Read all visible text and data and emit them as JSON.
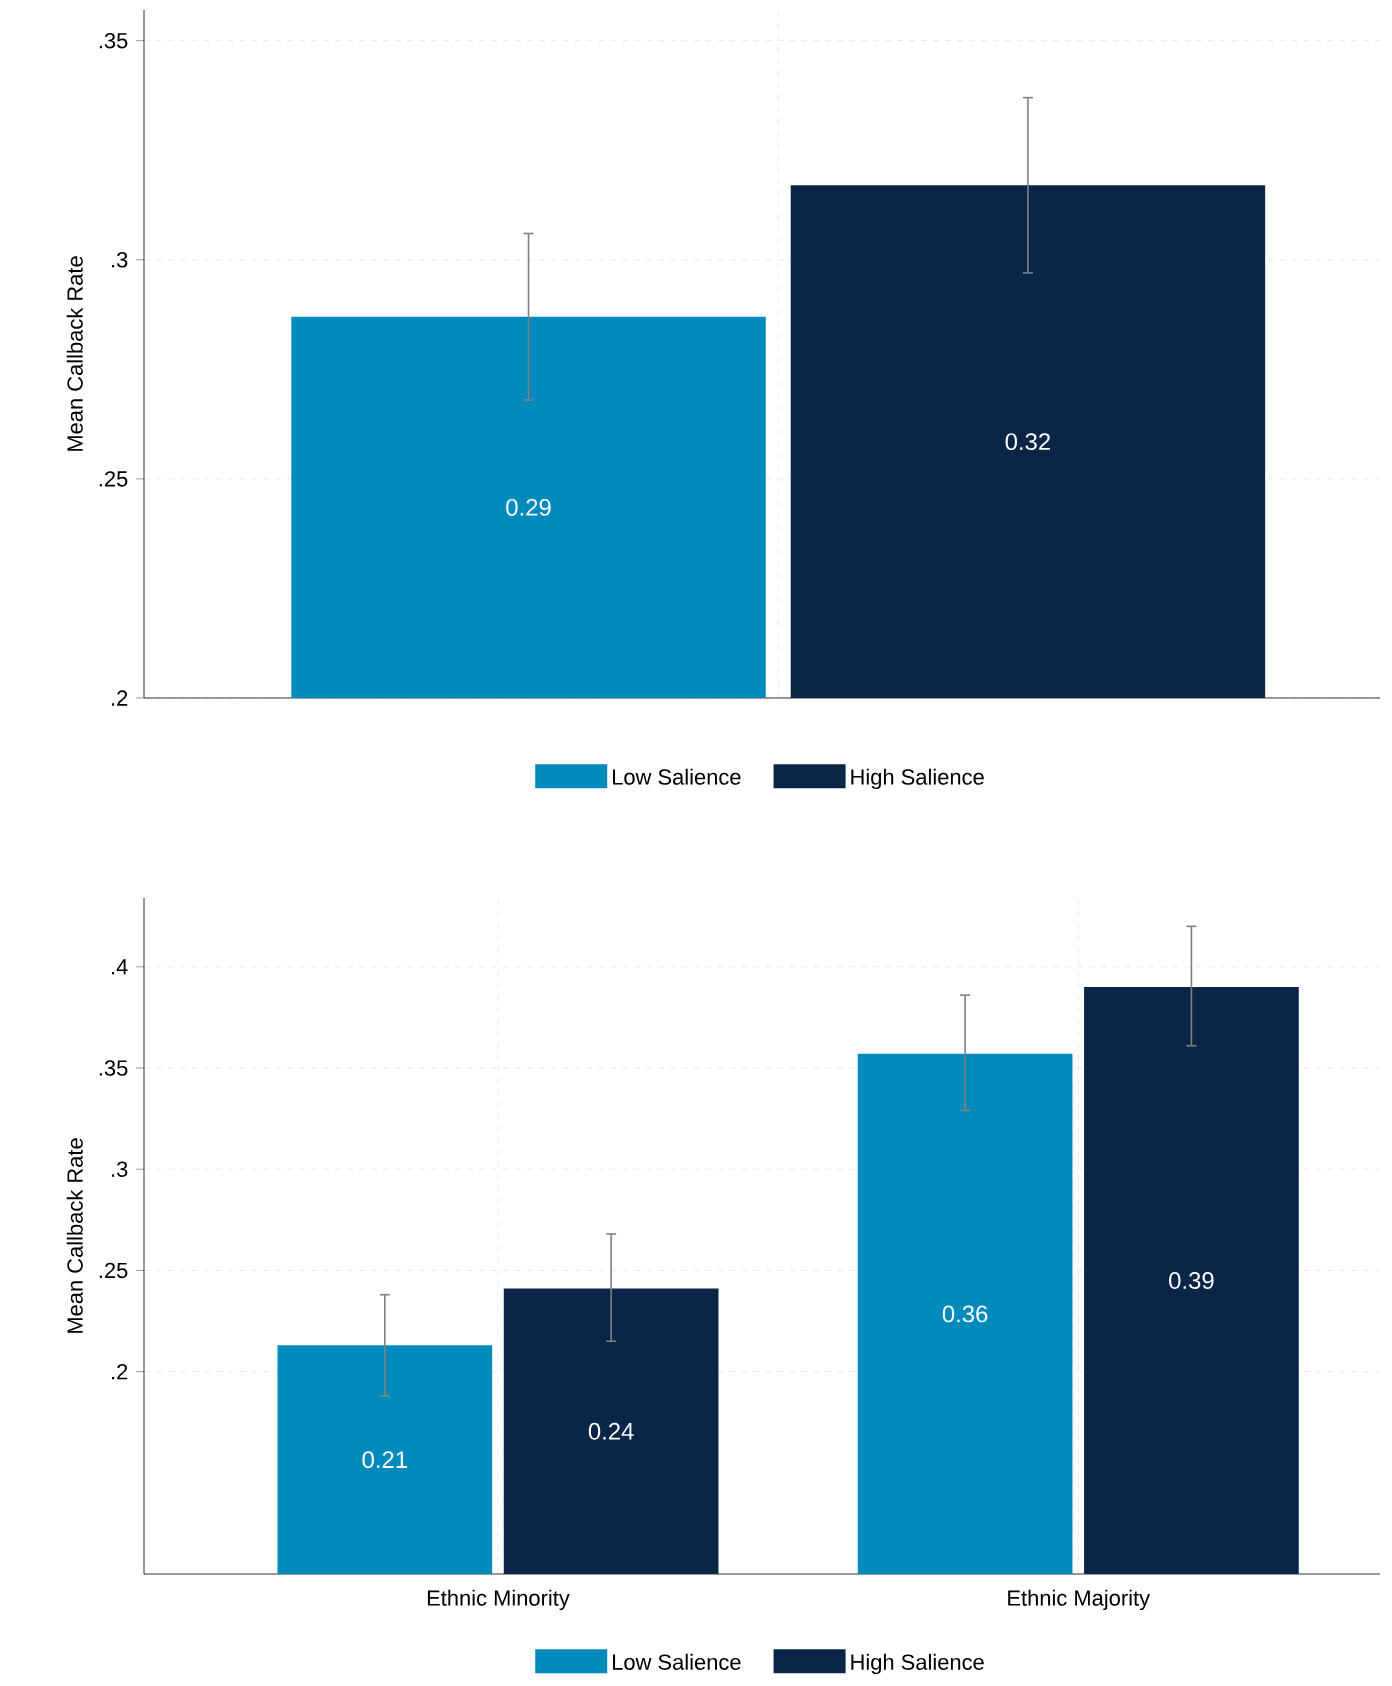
{
  "chart_data": [
    {
      "type": "bar",
      "ylabel": "Mean Callback Rate",
      "categories": [
        null
      ],
      "ylim": [
        0.2,
        0.357
      ],
      "yticks": [
        {
          "value": 0.2,
          "label": ".2"
        },
        {
          "value": 0.25,
          "label": ".25"
        },
        {
          "value": 0.3,
          "label": ".3"
        },
        {
          "value": 0.35,
          "label": ".35"
        }
      ],
      "grid": true,
      "legend": "bottom",
      "series": [
        {
          "name": "Low Salience",
          "color": "#008bbc",
          "values": [
            0.287
          ],
          "errors": [
            [
              0.268,
              0.306
            ]
          ],
          "value_labels": [
            "0.29"
          ]
        },
        {
          "name": "High Salience",
          "color": "#0b2549",
          "values": [
            0.317
          ],
          "errors": [
            [
              0.297,
              0.337
            ]
          ],
          "value_labels": [
            "0.32"
          ]
        }
      ]
    },
    {
      "type": "bar",
      "ylabel": "Mean Callback Rate",
      "categories": [
        "Ethnic Minority",
        "Ethnic Majority"
      ],
      "ylim": [
        0.1,
        0.434
      ],
      "yticks": [
        {
          "value": 0.2,
          "label": ".2"
        },
        {
          "value": 0.25,
          "label": ".25"
        },
        {
          "value": 0.3,
          "label": ".3"
        },
        {
          "value": 0.35,
          "label": ".35"
        },
        {
          "value": 0.4,
          "label": ".4"
        }
      ],
      "grid": true,
      "legend": "bottom",
      "series": [
        {
          "name": "Low Salience",
          "color": "#008bbc",
          "values": [
            0.213,
            0.357
          ],
          "errors": [
            [
              0.188,
              0.238
            ],
            [
              0.329,
              0.386
            ]
          ],
          "value_labels": [
            "0.21",
            "0.36"
          ]
        },
        {
          "name": "High Salience",
          "color": "#0b2549",
          "values": [
            0.241,
            0.39
          ],
          "errors": [
            [
              0.215,
              0.268
            ],
            [
              0.361,
              0.42
            ]
          ],
          "value_labels": [
            "0.24",
            "0.39"
          ]
        }
      ]
    }
  ]
}
